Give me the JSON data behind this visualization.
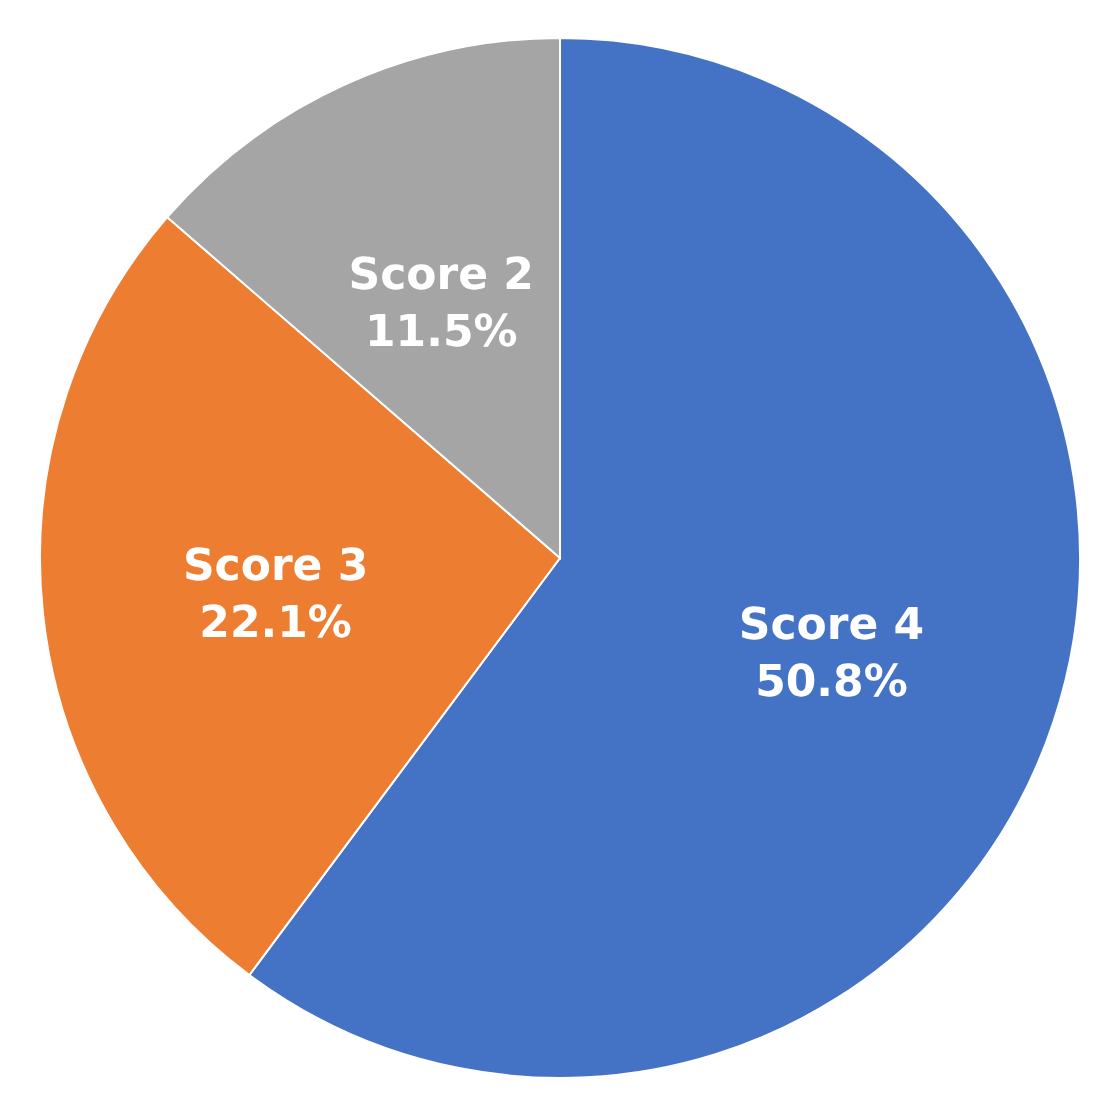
{
  "chart_data": {
    "type": "pie",
    "categories": [
      "Score 4",
      "Score 3",
      "Score 2"
    ],
    "values": [
      50.8,
      22.1,
      11.5
    ],
    "colors": [
      "#4472c4",
      "#ed7d31",
      "#a5a5a5"
    ],
    "value_labels": [
      "50.8%",
      "22.1%",
      "11.5%"
    ]
  }
}
